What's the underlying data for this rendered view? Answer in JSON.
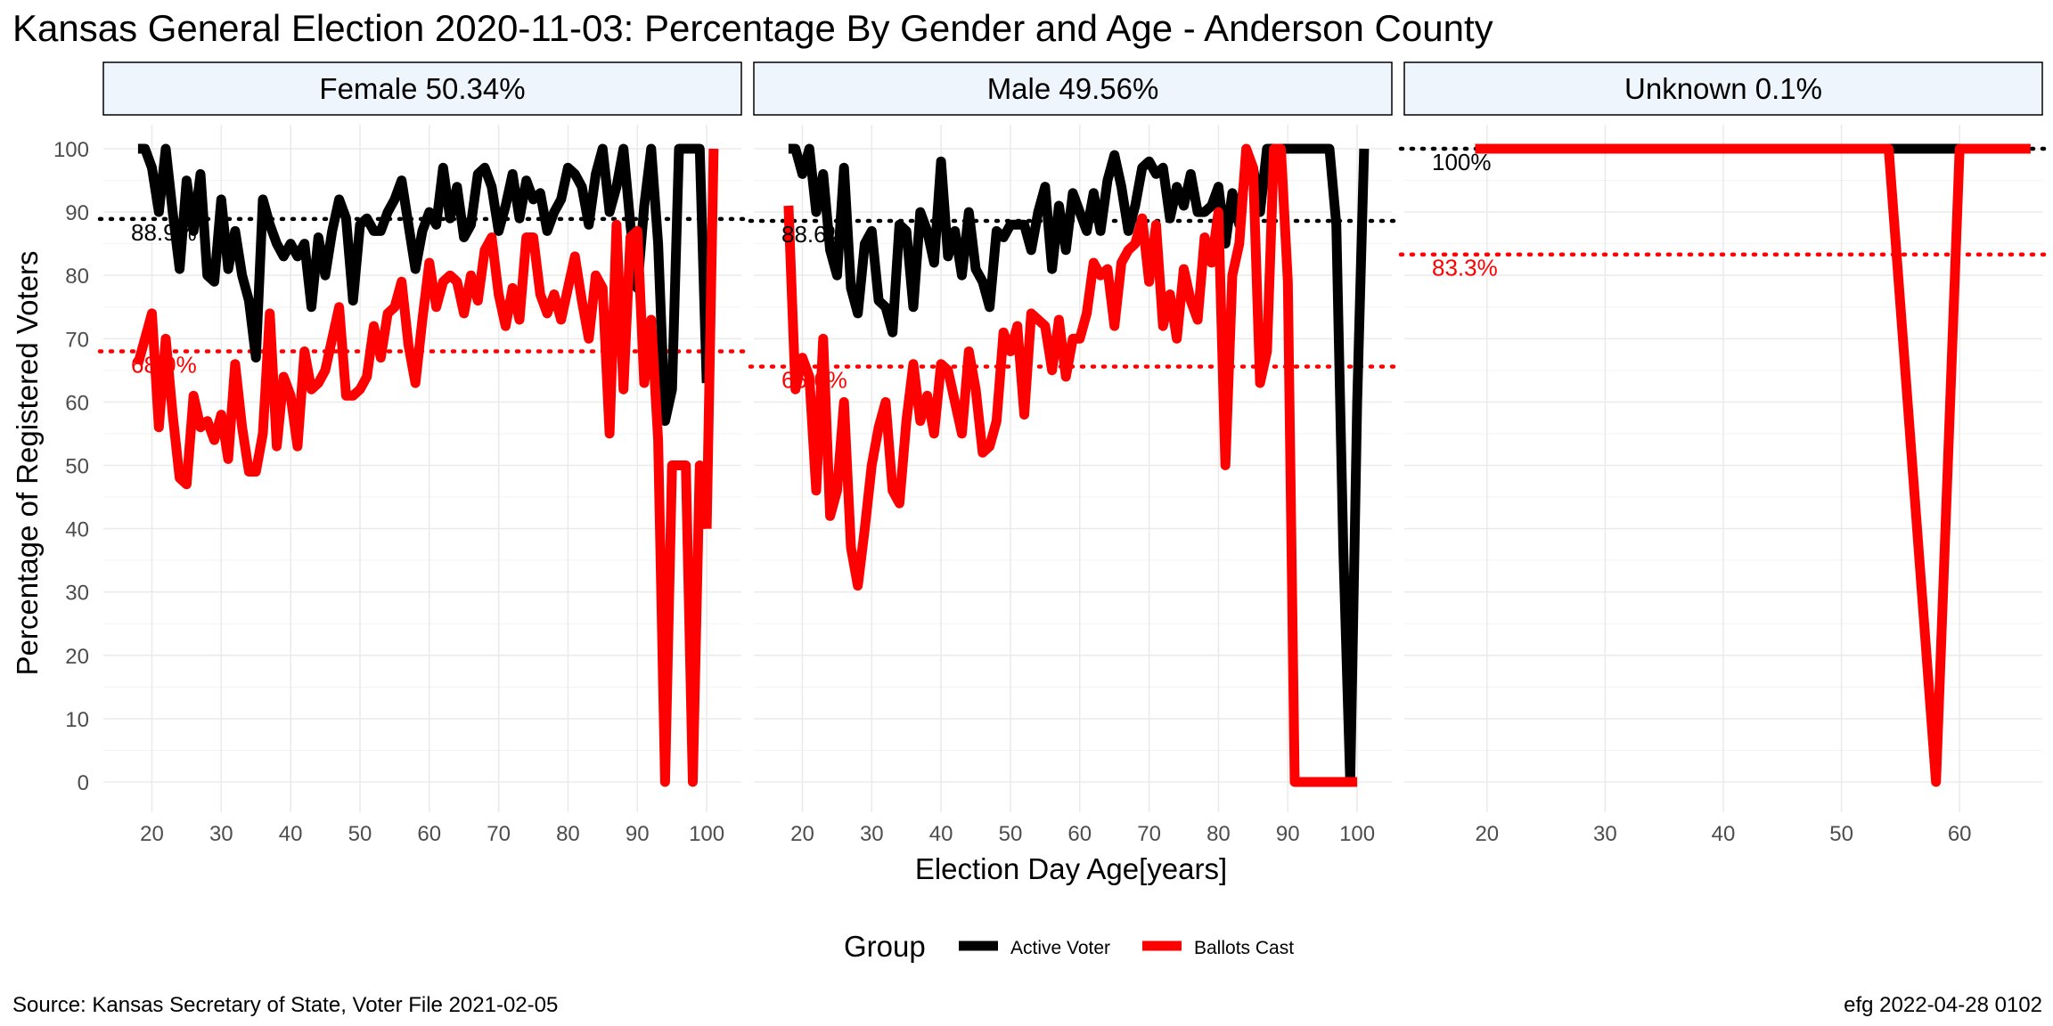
{
  "title": "Kansas General Election 2020-11-03:  Percentage By Gender and Age - Anderson County",
  "source": "Source:  Kansas Secretary of State, Voter File  2021-02-05",
  "credit": "efg 2022-04-28 0102",
  "colors": {
    "active": "#000000",
    "ballots": "#ff0000",
    "strip_fill": "#eef5fc",
    "grid": "#ebebeb"
  },
  "chart_data": {
    "type": "line",
    "xlabel": "Election Day Age[years]",
    "ylabel": "Percentage of Registered Voters",
    "ylim": [
      0,
      100
    ],
    "y_ticks": [
      0,
      10,
      20,
      30,
      40,
      50,
      60,
      70,
      80,
      90,
      100
    ],
    "grid": true,
    "legend": {
      "title": "Group",
      "position": "bottom",
      "entries": [
        {
          "name": "Active Voter",
          "color": "#000000"
        },
        {
          "name": "Ballots Cast",
          "color": "#ff0000"
        }
      ]
    },
    "panels": [
      {
        "label": "Female 50.34%",
        "xlim": [
          13,
          105
        ],
        "x_ticks": [
          20,
          30,
          40,
          50,
          60,
          70,
          80,
          90,
          100
        ],
        "active_mean": 88.9,
        "active_mean_label": "88.9%",
        "ballots_mean": 68.0,
        "ballots_mean_label": "68.0%",
        "series": [
          {
            "name": "Active Voter",
            "x": [
              18,
              19,
              20,
              21,
              22,
              23,
              24,
              25,
              26,
              27,
              28,
              29,
              30,
              31,
              32,
              33,
              34,
              35,
              36,
              37,
              38,
              39,
              40,
              41,
              42,
              43,
              44,
              45,
              46,
              47,
              48,
              49,
              50,
              51,
              52,
              53,
              54,
              55,
              56,
              57,
              58,
              59,
              60,
              61,
              62,
              63,
              64,
              65,
              66,
              67,
              68,
              69,
              70,
              71,
              72,
              73,
              74,
              75,
              76,
              77,
              78,
              79,
              80,
              81,
              82,
              83,
              84,
              85,
              86,
              87,
              88,
              89,
              90,
              91,
              92,
              93,
              94,
              95,
              96,
              97,
              98,
              99,
              100
            ],
            "y": [
              100,
              100,
              97,
              90,
              100,
              90,
              81,
              95,
              87,
              96,
              80,
              79,
              92,
              81,
              87,
              80,
              76,
              67,
              92,
              88,
              85,
              83,
              85,
              83,
              85,
              75,
              86,
              80,
              87,
              92,
              89,
              76,
              88,
              89,
              87,
              87,
              90,
              92,
              95,
              88,
              81,
              87,
              90,
              88,
              97,
              89,
              94,
              86,
              88,
              96,
              97,
              94,
              87,
              91,
              96,
              89,
              95,
              92,
              93,
              87,
              90,
              92,
              97,
              96,
              94,
              88,
              96,
              100,
              90,
              94,
              100,
              88,
              78,
              91,
              100,
              85,
              57,
              62,
              100,
              100,
              100,
              100,
              63
            ]
          },
          {
            "name": "Ballots Cast",
            "x": [
              18,
              19,
              20,
              21,
              22,
              23,
              24,
              25,
              26,
              27,
              28,
              29,
              30,
              31,
              32,
              33,
              34,
              35,
              36,
              37,
              38,
              39,
              40,
              41,
              42,
              43,
              44,
              45,
              46,
              47,
              48,
              49,
              50,
              51,
              52,
              53,
              54,
              55,
              56,
              57,
              58,
              59,
              60,
              61,
              62,
              63,
              64,
              65,
              66,
              67,
              68,
              69,
              70,
              71,
              72,
              73,
              74,
              75,
              76,
              77,
              78,
              79,
              80,
              81,
              82,
              83,
              84,
              85,
              86,
              87,
              88,
              89,
              90,
              91,
              92,
              93,
              94,
              95,
              96,
              97,
              98,
              99,
              100
            ],
            "y": [
              66,
              70,
              74,
              56,
              70,
              58,
              48,
              47,
              61,
              56,
              57,
              54,
              58,
              51,
              66,
              56,
              49,
              49,
              55,
              74,
              53,
              64,
              61,
              53,
              68,
              62,
              63,
              65,
              70,
              75,
              61,
              61,
              62,
              64,
              72,
              67,
              74,
              75,
              79,
              69,
              63,
              73,
              82,
              75,
              79,
              80,
              79,
              74,
              80,
              76,
              84,
              86,
              77,
              72,
              78,
              73,
              86,
              86,
              77,
              74,
              77,
              73,
              78,
              83,
              76,
              70,
              80,
              78,
              55,
              88,
              62,
              86,
              87,
              63,
              73,
              54,
              0,
              50,
              50,
              50,
              0,
              50,
              40
            ]
          }
        ],
        "final_ballots_point": {
          "x": 101,
          "y": 100
        }
      },
      {
        "label": "Male 49.56%",
        "xlim": [
          13,
          105
        ],
        "x_ticks": [
          20,
          30,
          40,
          50,
          60,
          70,
          80,
          90,
          100
        ],
        "active_mean": 88.6,
        "active_mean_label": "88.6%",
        "ballots_mean": 65.6,
        "ballots_mean_label": "65.6%",
        "series": [
          {
            "name": "Active Voter",
            "x": [
              18,
              19,
              20,
              21,
              22,
              23,
              24,
              25,
              26,
              27,
              28,
              29,
              30,
              31,
              32,
              33,
              34,
              35,
              36,
              37,
              38,
              39,
              40,
              41,
              42,
              43,
              44,
              45,
              46,
              47,
              48,
              49,
              50,
              51,
              52,
              53,
              54,
              55,
              56,
              57,
              58,
              59,
              60,
              61,
              62,
              63,
              64,
              65,
              66,
              67,
              68,
              69,
              70,
              71,
              72,
              73,
              74,
              75,
              76,
              77,
              78,
              79,
              80,
              81,
              82,
              83,
              84,
              85,
              86,
              87,
              88,
              89,
              90,
              91,
              92,
              93,
              94,
              95,
              96,
              97,
              98,
              99,
              100,
              101
            ],
            "y": [
              100,
              100,
              96,
              100,
              90,
              96,
              84,
              80,
              97,
              78,
              74,
              85,
              87,
              76,
              75,
              71,
              88,
              87,
              75,
              90,
              87,
              82,
              98,
              83,
              87,
              80,
              90,
              81,
              79,
              75,
              87,
              86,
              88,
              88,
              88,
              84,
              90,
              94,
              81,
              91,
              84,
              93,
              90,
              87,
              93,
              87,
              95,
              99,
              94,
              87,
              91,
              97,
              98,
              96,
              97,
              89,
              94,
              91,
              96,
              90,
              90,
              91,
              94,
              85,
              93,
              88,
              98,
              97,
              90,
              100,
              100,
              100,
              100,
              100,
              100,
              100,
              100,
              100,
              100,
              88,
              37,
              0,
              60,
              100
            ]
          },
          {
            "name": "Ballots Cast",
            "x": [
              18,
              19,
              20,
              21,
              22,
              23,
              24,
              25,
              26,
              27,
              28,
              29,
              30,
              31,
              32,
              33,
              34,
              35,
              36,
              37,
              38,
              39,
              40,
              41,
              42,
              43,
              44,
              45,
              46,
              47,
              48,
              49,
              50,
              51,
              52,
              53,
              54,
              55,
              56,
              57,
              58,
              59,
              60,
              61,
              62,
              63,
              64,
              65,
              66,
              67,
              68,
              69,
              70,
              71,
              72,
              73,
              74,
              75,
              76,
              77,
              78,
              79,
              80,
              81,
              82,
              83,
              84,
              85,
              86,
              87,
              88,
              89,
              90,
              91,
              92,
              93,
              94,
              95,
              96,
              97,
              98,
              99,
              100
            ],
            "y": [
              91,
              62,
              67,
              64,
              46,
              70,
              42,
              46,
              60,
              37,
              31,
              40,
              50,
              56,
              60,
              46,
              44,
              57,
              66,
              57,
              61,
              55,
              66,
              65,
              60,
              55,
              68,
              62,
              52,
              53,
              57,
              71,
              68,
              72,
              58,
              74,
              73,
              72,
              65,
              73,
              64,
              70,
              70,
              74,
              82,
              80,
              81,
              72,
              82,
              84,
              85,
              89,
              79,
              88,
              72,
              77,
              70,
              81,
              76,
              73,
              86,
              82,
              90,
              50,
              80,
              85,
              100,
              97,
              63,
              68,
              100,
              100,
              79,
              0,
              0,
              0,
              0,
              0,
              0,
              0,
              0,
              0,
              0
            ]
          }
        ]
      },
      {
        "label": "Unknown 0.1%",
        "xlim": [
          13,
          67
        ],
        "x_ticks": [
          20,
          30,
          40,
          50,
          60
        ],
        "active_mean": 100,
        "active_mean_label": "100%",
        "ballots_mean": 83.3,
        "ballots_mean_label": "83.3%",
        "series": [
          {
            "name": "Active Voter",
            "x": [
              19,
              66
            ],
            "y": [
              100,
              100
            ]
          },
          {
            "name": "Ballots Cast",
            "x": [
              19,
              54,
              58,
              60,
              66
            ],
            "y": [
              100,
              100,
              0,
              100,
              100
            ]
          }
        ]
      }
    ]
  }
}
